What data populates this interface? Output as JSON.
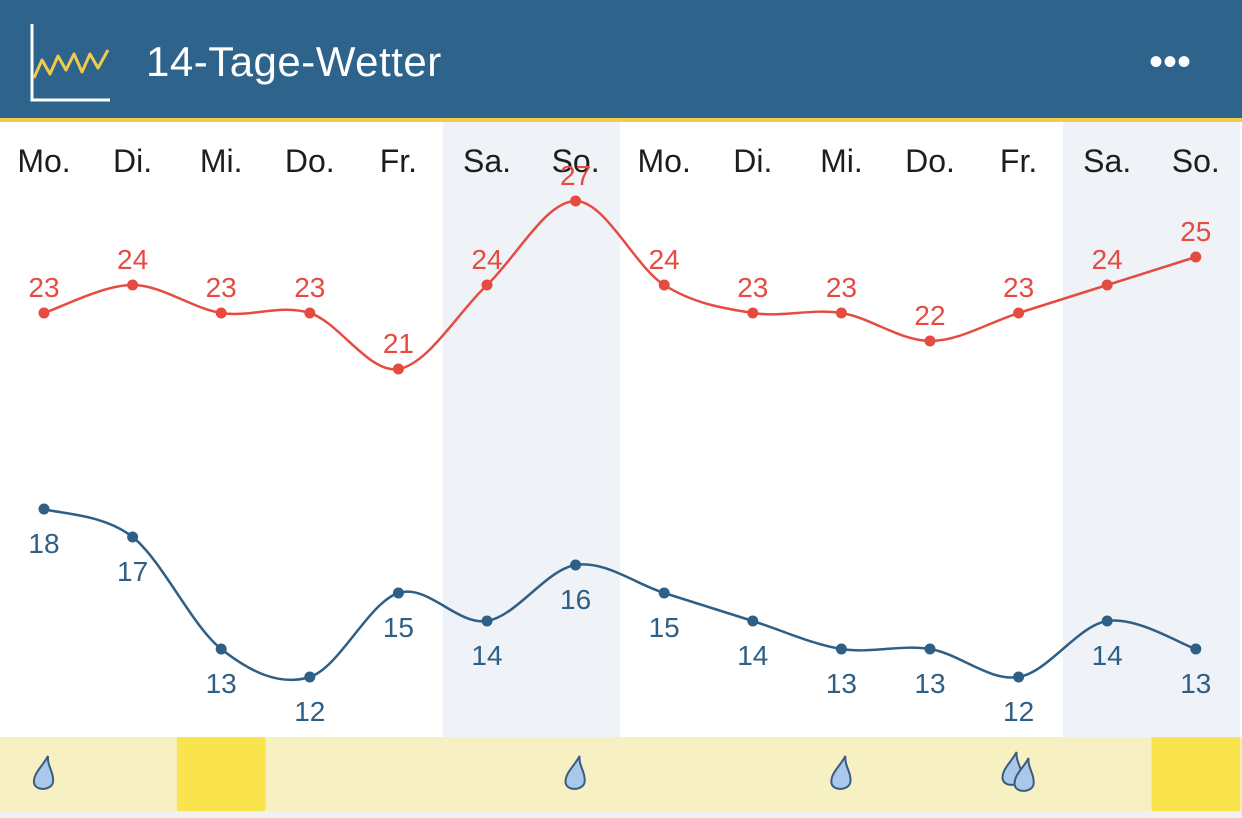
{
  "header": {
    "title": "14-Tage-Wetter",
    "app_icon": "line-chart-icon",
    "more_icon": "more-dots-icon",
    "more_label": "•••"
  },
  "colors": {
    "header_bg": "#2e638b",
    "header_accent": "#f1cc4b",
    "high_series": "#e64b41",
    "low_series": "#2e5f86",
    "weekend_bg": "#eff2f6",
    "strip_bg": "#f6f0c3",
    "strip_highlight": "#f9e44d",
    "raindrop_fill": "#a9c8ea"
  },
  "chart_data": {
    "type": "line",
    "categories": [
      "Mo.",
      "Di.",
      "Mi.",
      "Do.",
      "Fr.",
      "Sa.",
      "So.",
      "Mo.",
      "Di.",
      "Mi.",
      "Do.",
      "Fr.",
      "Sa.",
      "So."
    ],
    "weekend_days": [
      5,
      6,
      12,
      13
    ],
    "series": [
      {
        "values": [
          23,
          24,
          23,
          23,
          21,
          24,
          27,
          24,
          23,
          23,
          22,
          23,
          24,
          25
        ]
      },
      {
        "values": [
          18,
          17,
          13,
          12,
          15,
          14,
          16,
          15,
          14,
          13,
          13,
          12,
          14,
          13
        ]
      }
    ],
    "rain_icons": [
      {
        "day": 0,
        "type": "raindrop-icon"
      },
      {
        "day": 6,
        "type": "raindrop-icon"
      },
      {
        "day": 9,
        "type": "raindrop-icon"
      },
      {
        "day": 11,
        "type": "double-raindrop-icon"
      }
    ],
    "highlighted_days": [
      2,
      13
    ]
  }
}
